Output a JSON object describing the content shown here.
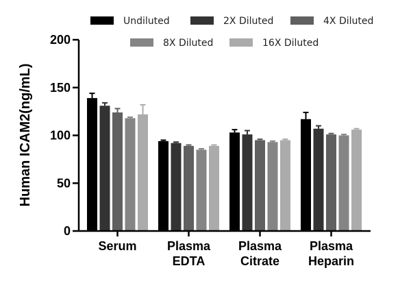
{
  "chart_data": {
    "type": "bar",
    "ylabel": "Human ICAM2(ng/mL)",
    "ylim": [
      0,
      200
    ],
    "yticks": [
      "0",
      "50",
      "100",
      "150",
      "200"
    ],
    "categories": [
      [
        "Serum"
      ],
      [
        "Plasma",
        "EDTA"
      ],
      [
        "Plasma",
        "Citrate"
      ],
      [
        "Plasma",
        "Heparin"
      ]
    ],
    "legend_position": "top",
    "grid": false,
    "series": [
      {
        "name": "Undiluted",
        "color": "#000000",
        "values": [
          139,
          94,
          103,
          117
        ],
        "errors": [
          5,
          1,
          3,
          7
        ]
      },
      {
        "name": "2X Diluted",
        "color": "#333333",
        "values": [
          131,
          92,
          101,
          107
        ],
        "errors": [
          3,
          1,
          4,
          3
        ]
      },
      {
        "name": "4X Diluted",
        "color": "#606060",
        "values": [
          124,
          89,
          95,
          101
        ],
        "errors": [
          4,
          1,
          1,
          1
        ]
      },
      {
        "name": "8X Diluted",
        "color": "#858585",
        "values": [
          118,
          85,
          93,
          100
        ],
        "errors": [
          1,
          1,
          1,
          1
        ]
      },
      {
        "name": "16X Diluted",
        "color": "#ababab",
        "values": [
          122,
          89,
          95,
          106
        ],
        "errors": [
          10,
          1,
          1,
          1
        ]
      }
    ]
  }
}
